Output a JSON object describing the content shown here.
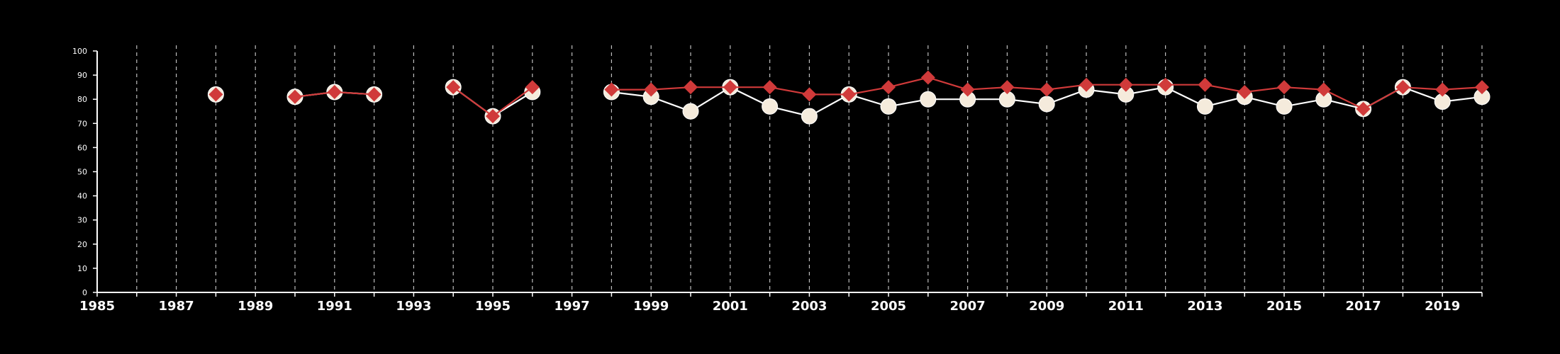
{
  "chart_data": {
    "type": "line",
    "title": "",
    "xlabel": "",
    "ylabel": "",
    "xlim": [
      1985,
      2020
    ],
    "ylim": [
      0,
      100
    ],
    "x_ticks": [
      1985,
      1987,
      1989,
      1991,
      1993,
      1995,
      1997,
      1999,
      2001,
      2003,
      2005,
      2007,
      2009,
      2011,
      2013,
      2015,
      2017,
      2019
    ],
    "y_ticks": [
      0,
      10,
      20,
      30,
      40,
      50,
      60,
      70,
      80,
      90,
      100
    ],
    "grid": {
      "vertical_dashed": true,
      "horizontal": false
    },
    "legend": "none",
    "background": "#000000",
    "series": [
      {
        "marker": "circle",
        "color": "#ffffff",
        "fill": "#f5ebdc",
        "points": [
          [
            1988,
            82
          ],
          [
            1990,
            81
          ],
          [
            1991,
            83
          ],
          [
            1992,
            82
          ],
          [
            1994,
            85
          ],
          [
            1995,
            73
          ],
          [
            1996,
            83
          ],
          [
            1998,
            83
          ],
          [
            1999,
            81
          ],
          [
            2000,
            75
          ],
          [
            2001,
            85
          ],
          [
            2002,
            77
          ],
          [
            2003,
            73
          ],
          [
            2004,
            82
          ],
          [
            2005,
            77
          ],
          [
            2006,
            80
          ],
          [
            2007,
            80
          ],
          [
            2008,
            80
          ],
          [
            2009,
            78
          ],
          [
            2010,
            84
          ],
          [
            2011,
            82
          ],
          [
            2012,
            85
          ],
          [
            2013,
            77
          ],
          [
            2014,
            81
          ],
          [
            2015,
            77
          ],
          [
            2016,
            80
          ],
          [
            2017,
            76
          ],
          [
            2018,
            85
          ],
          [
            2019,
            79
          ],
          [
            2020,
            81
          ]
        ]
      },
      {
        "marker": "diamond",
        "color": "#d03a3a",
        "points": [
          [
            1988,
            82
          ],
          [
            1990,
            81
          ],
          [
            1991,
            83
          ],
          [
            1992,
            82
          ],
          [
            1994,
            85
          ],
          [
            1995,
            73
          ],
          [
            1996,
            85
          ],
          [
            1998,
            84
          ],
          [
            1999,
            84
          ],
          [
            2000,
            85
          ],
          [
            2001,
            85
          ],
          [
            2002,
            85
          ],
          [
            2003,
            82
          ],
          [
            2004,
            82
          ],
          [
            2005,
            85
          ],
          [
            2006,
            89
          ],
          [
            2007,
            84
          ],
          [
            2008,
            85
          ],
          [
            2009,
            84
          ],
          [
            2010,
            86
          ],
          [
            2011,
            86
          ],
          [
            2012,
            86
          ],
          [
            2013,
            86
          ],
          [
            2014,
            83
          ],
          [
            2015,
            85
          ],
          [
            2016,
            84
          ],
          [
            2017,
            76
          ],
          [
            2018,
            85
          ],
          [
            2019,
            84
          ],
          [
            2020,
            85
          ]
        ]
      }
    ]
  }
}
